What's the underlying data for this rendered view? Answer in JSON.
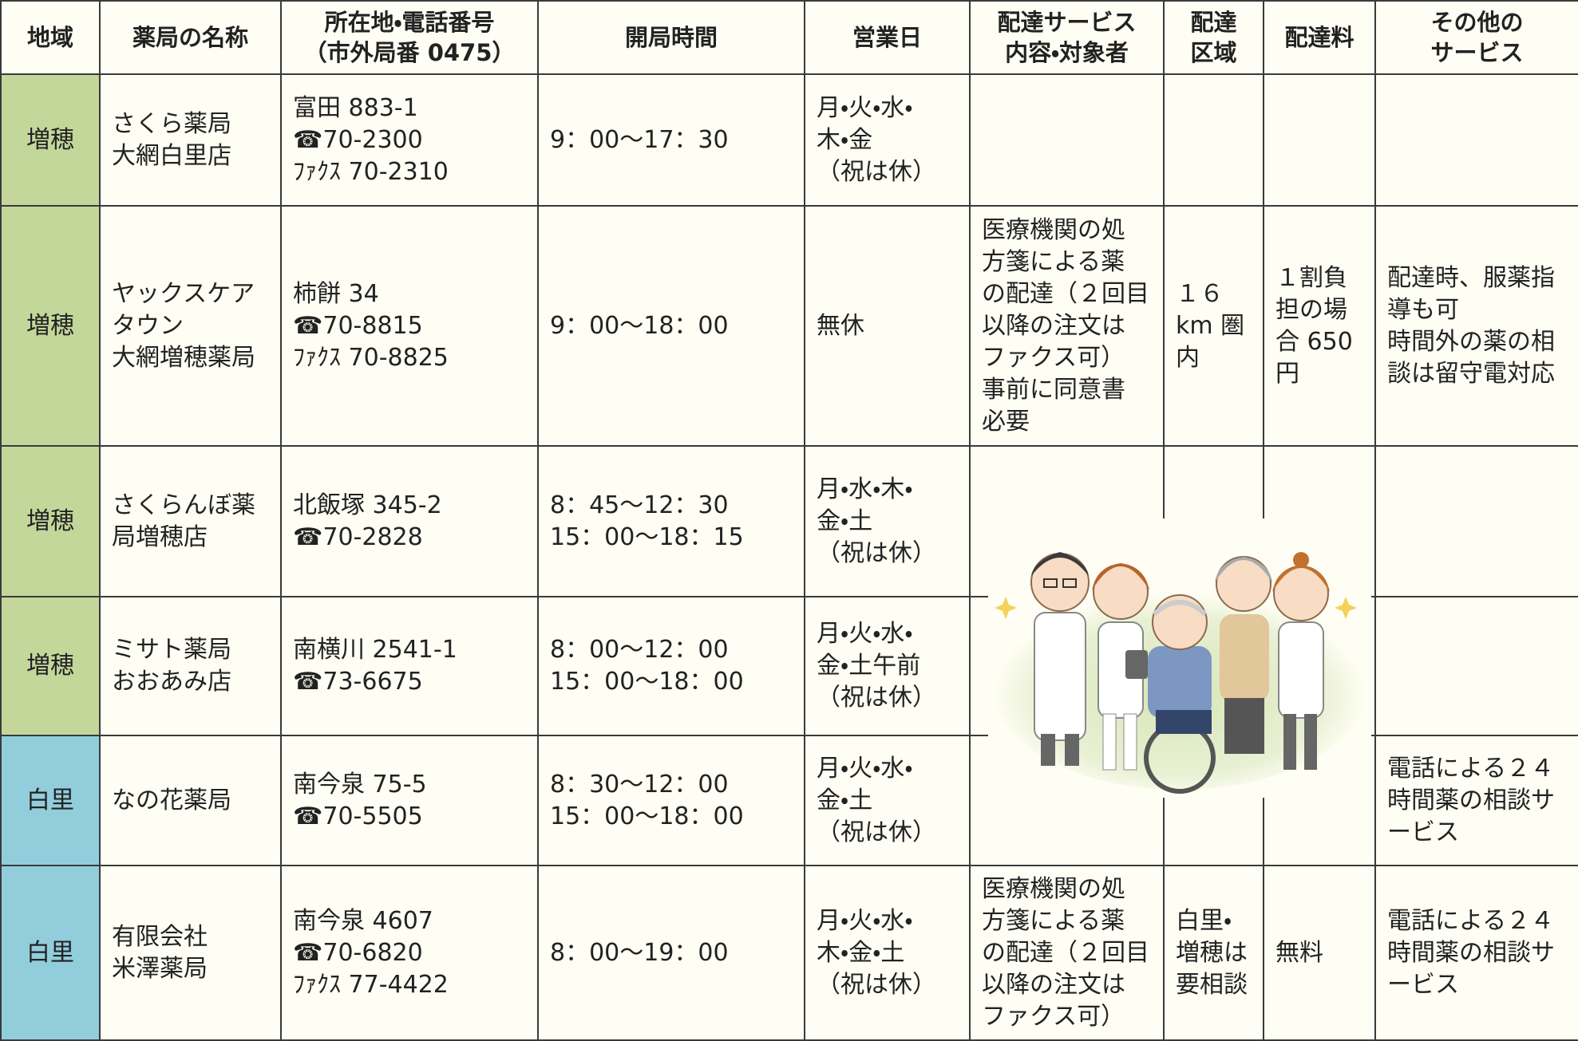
{
  "region_colors": {
    "増穂": "#c4d79b",
    "白里": "#92cddc"
  },
  "table": {
    "header": [
      "地域",
      "薬局の名称",
      "所在地・電話番号\n（市外局番 0475）",
      "開局時間",
      "営業日",
      "配達サービス\n内容・対象者",
      "配達\n区域",
      "配達料",
      "その他の\nサービス"
    ],
    "rows": [
      [
        "増穂",
        "さくら薬局\n大網白里店",
        "富田 883-1\n☎70-2300\nﾌｧｸｽ 70-2310",
        "9：00～17：30",
        "月・火・水・\n木・金\n（祝は休）",
        null,
        null,
        null,
        null
      ],
      [
        "増穂",
        "ヤックスケア\nタウン\n大網増穂薬局",
        "柿餅 34\n☎70-8815\nﾌｧｸｽ 70-8825",
        "9：00～18：00",
        "無休",
        "医療機関の処\n方箋による薬\nの配達（２回目\n以降の注文は\nファクス可）\n事前に同意書\n必要",
        "１６\nkm 圏\n内",
        "１割負\n担の場\n合 650\n円",
        "配達時、服薬指\n導も可\n時間外の薬の相\n談は留守電対応"
      ],
      [
        "増穂",
        "さくらんぼ薬\n局増穂店",
        "北飯塚 345-2\n☎70-2828",
        "8：45～12：30\n15：00～18：15",
        "月・水・木・\n金・土\n（祝は休）",
        null,
        null,
        null,
        null
      ],
      [
        "増穂",
        "ミサト薬局\nおおあみ店",
        "南横川 2541-1\n☎73-6675",
        "8：00～12：00\n15：00～18：00",
        "月・火・水・\n金・土午前\n（祝は休）",
        null,
        null,
        null,
        null
      ],
      [
        "白里",
        "なの花薬局",
        "南今泉 75-5\n☎70-5505",
        "8：30～12：00\n15：00～18：00",
        "月・火・水・\n金・土\n（祝は休）",
        null,
        null,
        null,
        "電話による２４\n時間薬の相談サ\nービス"
      ],
      [
        "白里",
        "有限会社\n米澤薬局",
        "南今泉 4607\n☎70-6820\nﾌｧｸｽ 77-4422",
        "8：00～19：00",
        "月・火・水・\n木・金・土\n（祝は休）",
        "医療機関の処\n方箋による薬\nの配達（２回目\n以降の注文は\nファクス可）",
        "白里・\n増穂は\n要相談",
        "無料",
        "電話による２４\n時間薬の相談サ\nービス"
      ]
    ]
  }
}
